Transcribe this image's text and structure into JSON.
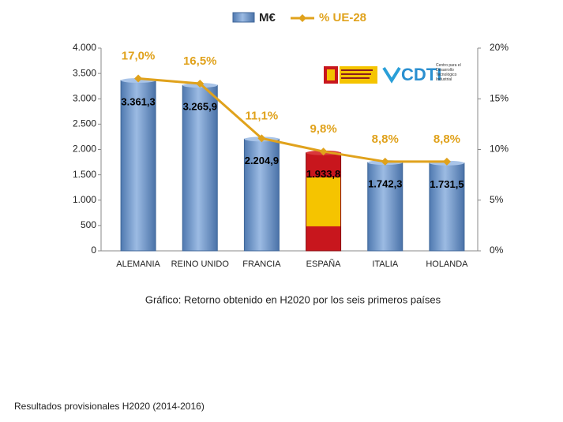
{
  "chart_data": {
    "type": "bar_line",
    "categories": [
      "ALEMANIA",
      "REINO UNIDO",
      "FRANCIA",
      "ESPAÑA",
      "ITALIA",
      "HOLANDA"
    ],
    "series": [
      {
        "name": "M€",
        "type": "bar",
        "color": "#6e97cb",
        "colors": [
          "#6e97cb",
          "#6e97cb",
          "#6e97cb",
          "#c8161d",
          "#6e97cb",
          "#6e97cb"
        ],
        "values": [
          3361.3,
          3265.9,
          2204.9,
          1933.8,
          1742.3,
          1731.5
        ],
        "value_labels": [
          "3.361,3",
          "3.265,9",
          "2.204,9",
          "1.933,8",
          "1.742,3",
          "1.731,5"
        ]
      },
      {
        "name": "% UE-28",
        "type": "line",
        "axis": "y2",
        "color": "#e0a21c",
        "values": [
          17.0,
          16.5,
          11.1,
          9.8,
          8.8,
          8.8
        ],
        "value_labels": [
          "17,0%",
          "16,5%",
          "11,1%",
          "9,8%",
          "8,8%",
          "8,8%"
        ]
      }
    ],
    "ylim": [
      0,
      4000
    ],
    "yticks": [
      0,
      500,
      {
        "value": 1000,
        "label": "1.000"
      },
      {
        "value": 1500,
        "label": "1.500"
      },
      {
        "value": 2000,
        "label": "2.000"
      },
      {
        "value": 2500,
        "label": "2.500"
      },
      {
        "value": 3000,
        "label": "3.000"
      },
      {
        "value": 3500,
        "label": "3.500"
      },
      {
        "value": 4000,
        "label": "4.000"
      }
    ],
    "y2lim": [
      0,
      20
    ],
    "y2ticks": [
      {
        "value": 0,
        "label": "0%"
      },
      {
        "value": 5,
        "label": "5%"
      },
      {
        "value": 10,
        "label": "10%"
      },
      {
        "value": 15,
        "label": "15%"
      },
      {
        "value": 20,
        "label": "20%"
      }
    ],
    "caption": "Gráfico: Retorno obtenido en H2020 por los seis primeros países",
    "logo": {
      "name": "CDTI",
      "text": "Centro para el Desarrollo Tecnológico Industrial"
    }
  },
  "footer": "Resultados provisionales H2020 (2014-2016)"
}
